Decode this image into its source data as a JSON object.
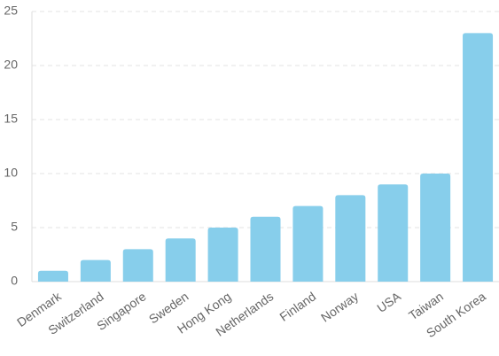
{
  "chart_data": {
    "type": "bar",
    "categories": [
      "Denmark",
      "Switzerland",
      "Singapore",
      "Sweden",
      "Hong Kong",
      "Netherlands",
      "Finland",
      "Norway",
      "USA",
      "Taiwan",
      "South Korea"
    ],
    "values": [
      1,
      2,
      3,
      4,
      5,
      6,
      7,
      8,
      9,
      10,
      23
    ],
    "color": "#87ceeb",
    "ylim": [
      0,
      25
    ],
    "yticks": [
      0,
      5,
      10,
      15,
      20,
      25
    ],
    "grid": true
  }
}
